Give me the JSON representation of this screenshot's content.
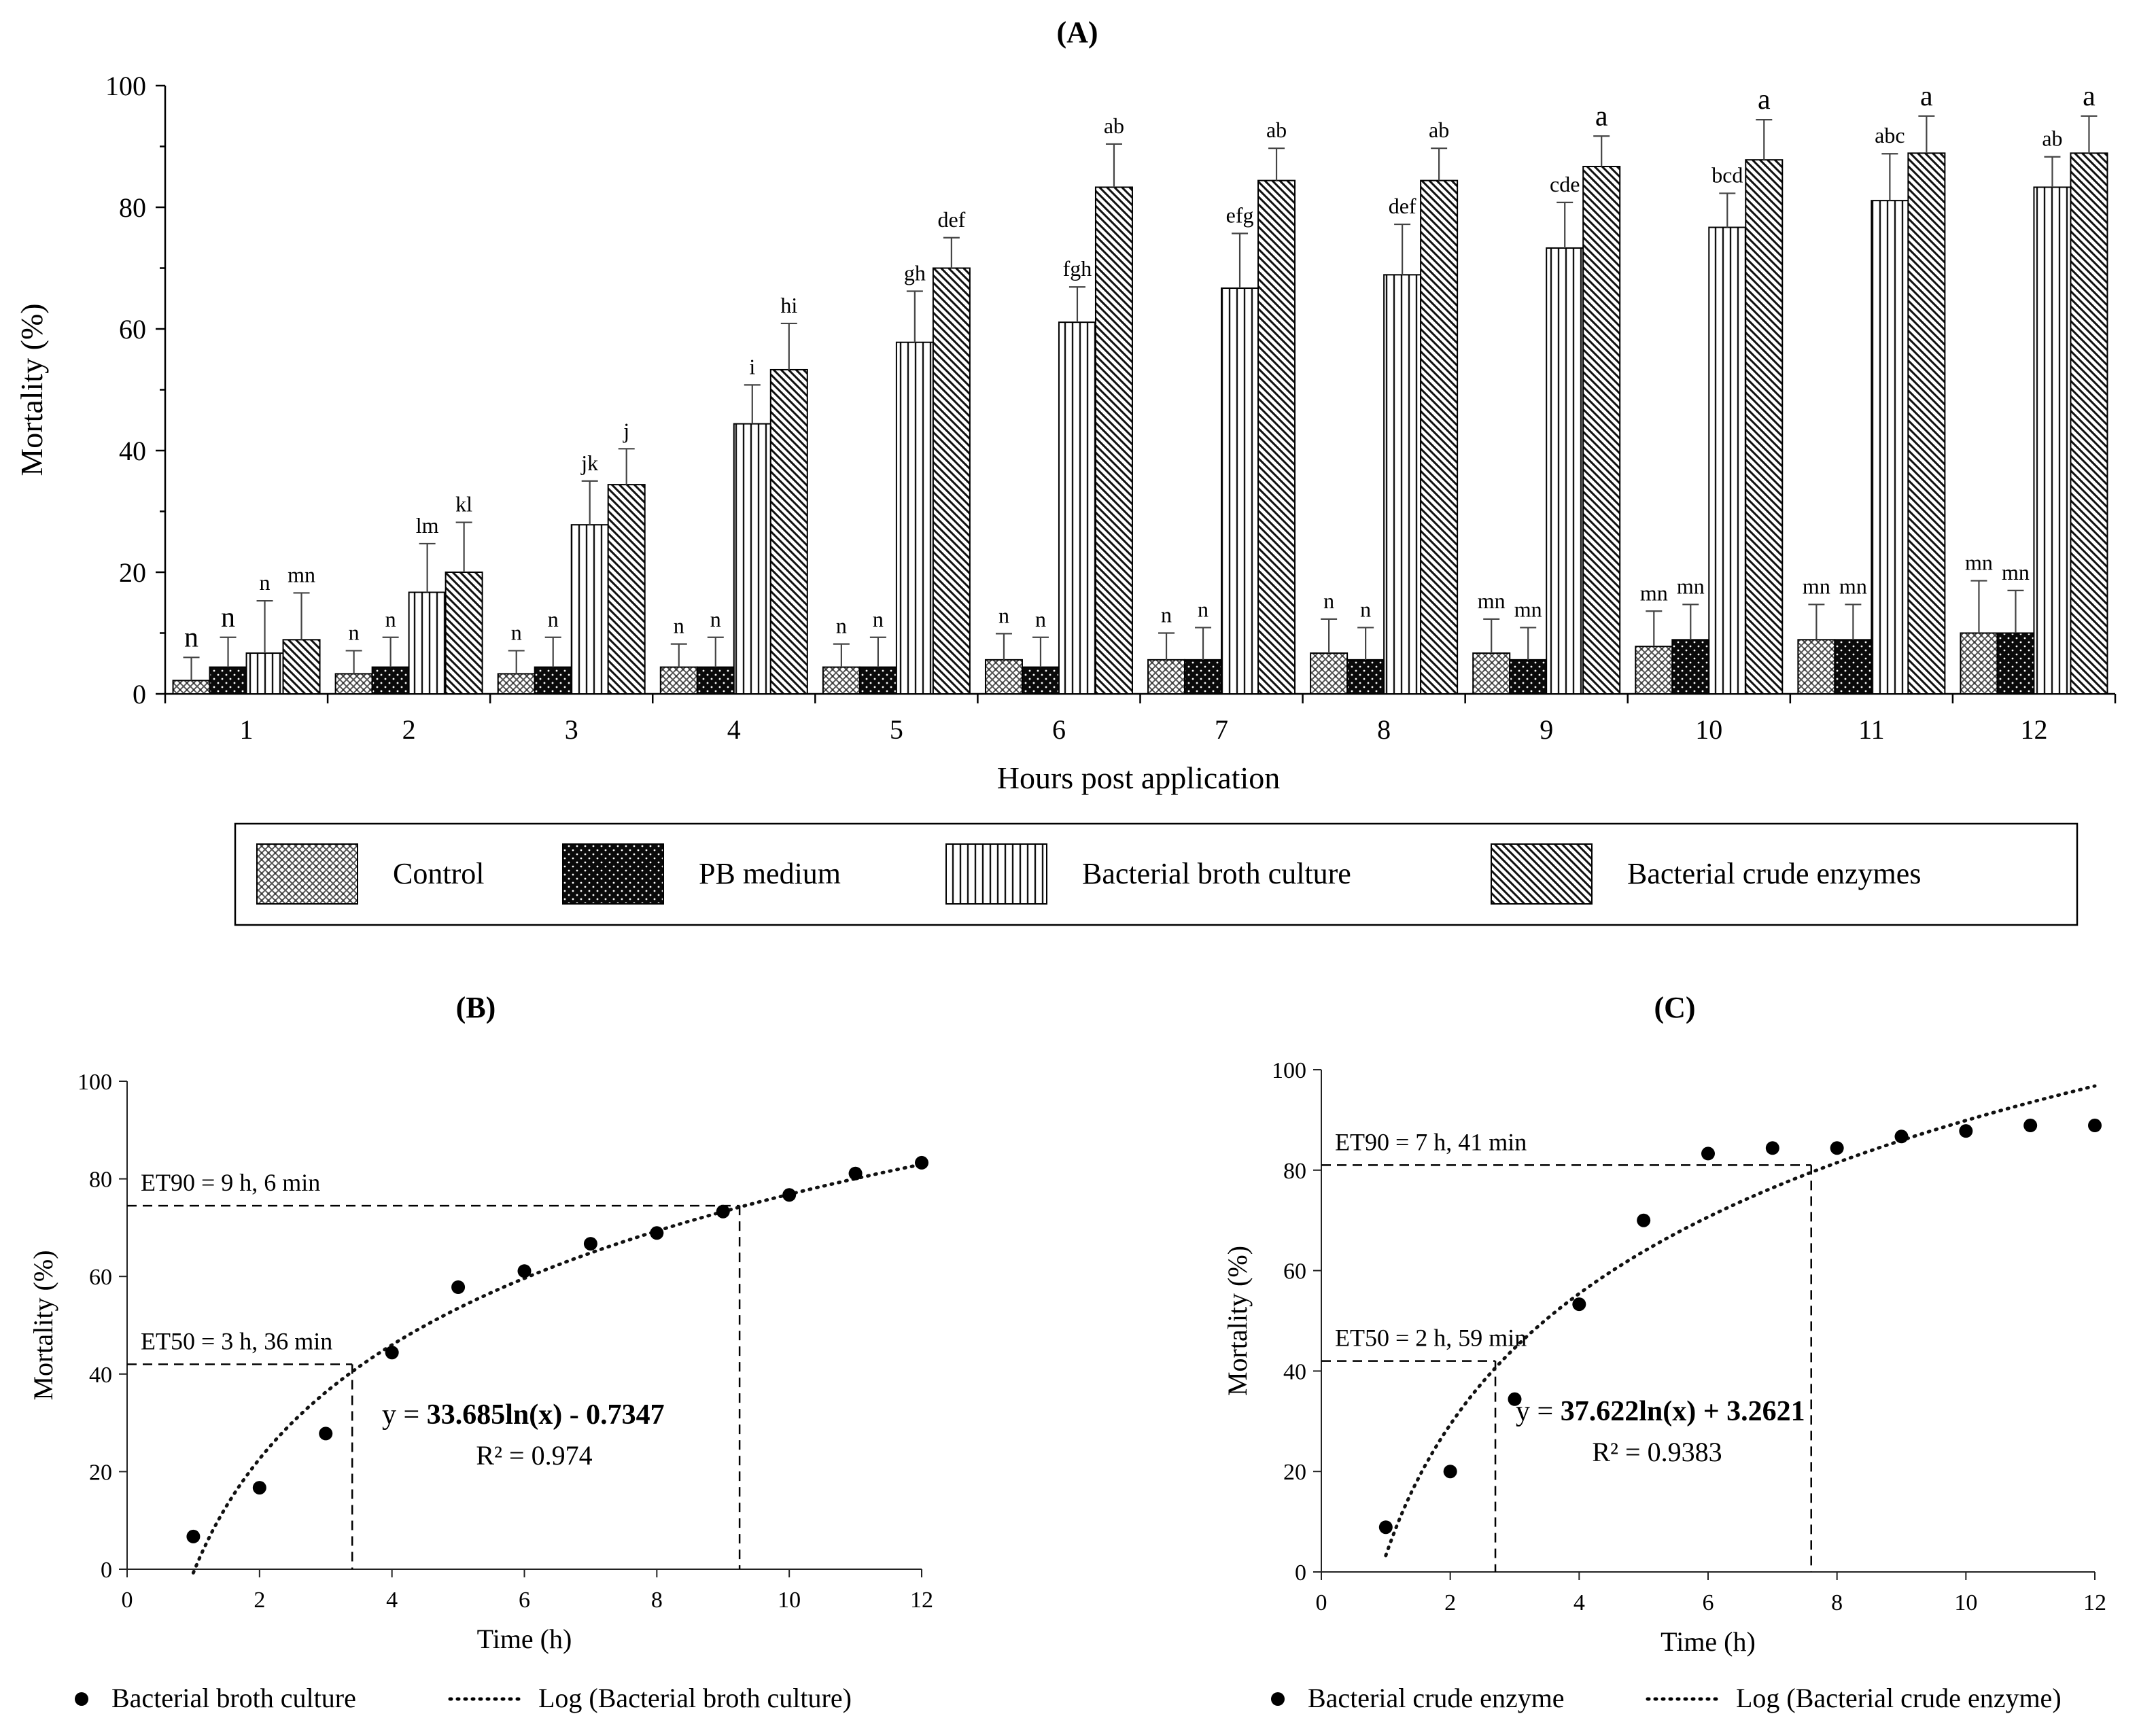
{
  "chart_data": [
    {
      "panel": "A",
      "type": "bar",
      "title": "(A)",
      "xlabel": "Hours post application",
      "ylabel": "Mortality (%)",
      "ylim": [
        0,
        100
      ],
      "yticks": [
        0,
        20,
        40,
        60,
        80,
        100
      ],
      "categories": [
        "1",
        "2",
        "3",
        "4",
        "5",
        "6",
        "7",
        "8",
        "9",
        "10",
        "11",
        "12"
      ],
      "grid": false,
      "legend_position": "bottom",
      "series": [
        {
          "name": "Control",
          "pattern": "crosshatch-light",
          "values": [
            2.2,
            3.3,
            3.3,
            4.4,
            4.4,
            5.6,
            5.6,
            6.7,
            6.7,
            7.8,
            8.9,
            10.0
          ],
          "errors": [
            3.8,
            3.8,
            3.8,
            3.8,
            3.8,
            4.3,
            4.4,
            5.6,
            5.6,
            5.8,
            5.8,
            8.6
          ],
          "letters": [
            "n",
            "n",
            "n",
            "n",
            "n",
            "n",
            "n",
            "n",
            "mn",
            "mn",
            "mn",
            "mn"
          ]
        },
        {
          "name": "PB medium",
          "pattern": "dots-on-black",
          "values": [
            4.4,
            4.4,
            4.4,
            4.4,
            4.4,
            4.4,
            5.6,
            5.6,
            5.6,
            8.9,
            8.9,
            10.0
          ],
          "errors": [
            4.9,
            4.9,
            4.9,
            4.9,
            4.9,
            4.9,
            5.3,
            5.3,
            5.3,
            5.8,
            5.8,
            7.0
          ],
          "letters": [
            "n",
            "n",
            "n",
            "n",
            "n",
            "n",
            "n",
            "n",
            "mn",
            "mn",
            "mn",
            "mn"
          ]
        },
        {
          "name": "Bacterial broth culture",
          "pattern": "vertical-lines",
          "values": [
            6.7,
            16.7,
            27.8,
            44.4,
            57.8,
            61.1,
            66.7,
            68.9,
            73.3,
            76.7,
            81.1,
            83.3
          ],
          "errors": [
            8.6,
            8.0,
            7.2,
            6.4,
            8.4,
            5.8,
            9.0,
            8.3,
            7.5,
            5.6,
            7.7,
            5.0
          ],
          "letters": [
            "n",
            "lm",
            "jk",
            "i",
            "gh",
            "fgh",
            "efg",
            "def",
            "cde",
            "bcd",
            "abc",
            "ab"
          ]
        },
        {
          "name": "Bacterial crude enzymes",
          "pattern": "diagonal-hatch",
          "values": [
            8.9,
            20.0,
            34.4,
            53.3,
            70.0,
            83.3,
            84.4,
            84.4,
            86.7,
            87.8,
            88.9,
            88.9
          ],
          "errors": [
            7.7,
            8.2,
            5.9,
            7.6,
            5.0,
            7.1,
            5.3,
            5.3,
            5.0,
            6.6,
            6.1,
            6.1
          ],
          "letters": [
            "mn",
            "kl",
            "j",
            "hi",
            "def",
            "ab",
            "ab",
            "ab",
            "a",
            "a",
            "a",
            "a"
          ]
        }
      ]
    },
    {
      "panel": "B",
      "type": "scatter",
      "title": "(B)",
      "xlabel": "Time (h)",
      "ylabel": "Mortality (%)",
      "xlim": [
        0,
        12
      ],
      "ylim": [
        0,
        100
      ],
      "xticks": [
        0,
        2,
        4,
        6,
        8,
        10,
        12
      ],
      "yticks": [
        0,
        20,
        40,
        60,
        80,
        100
      ],
      "series_name": "Bacterial broth culture",
      "trend_name": "Log (Bacterial broth culture)",
      "x": [
        1,
        2,
        3,
        4,
        5,
        6,
        7,
        8,
        9,
        10,
        11,
        12
      ],
      "y": [
        6.7,
        16.7,
        27.8,
        44.4,
        57.8,
        61.1,
        66.7,
        68.9,
        73.3,
        76.7,
        81.1,
        83.3
      ],
      "fit": {
        "a": 33.685,
        "b": -0.7347
      },
      "equation_prefix": "y = ",
      "equation_bold": "33.685ln(x) - 0.7347",
      "r2": "R² = 0.974",
      "et50_label": "ET50 = 3 h, 36 min",
      "et50": {
        "x": 3.4,
        "y": 42
      },
      "et90_label": "ET90 = 9 h, 6 min",
      "et90": {
        "x": 9.25,
        "y": 74.5
      }
    },
    {
      "panel": "C",
      "type": "scatter",
      "title": "(C)",
      "xlabel": "Time (h)",
      "ylabel": "Mortality (%)",
      "xlim": [
        0,
        12
      ],
      "ylim": [
        0,
        100
      ],
      "xticks": [
        0,
        2,
        4,
        6,
        8,
        10,
        12
      ],
      "yticks": [
        0,
        20,
        40,
        60,
        80,
        100
      ],
      "series_name": "Bacterial crude enzyme",
      "trend_name": "Log (Bacterial crude enzyme)",
      "x": [
        1,
        2,
        3,
        4,
        5,
        6,
        7,
        8,
        9,
        10,
        11,
        12
      ],
      "y": [
        8.9,
        20.0,
        34.4,
        53.3,
        70.0,
        83.3,
        84.4,
        84.4,
        86.7,
        87.8,
        88.9,
        88.9
      ],
      "fit": {
        "a": 37.622,
        "b": 3.2621
      },
      "equation_prefix": "y = ",
      "equation_bold": "37.622ln(x) + 3.2621",
      "r2": "R² = 0.9383",
      "et50_label": "ET50 = 2 h, 59 min",
      "et50": {
        "x": 2.7,
        "y": 42
      },
      "et90_label": "ET90 = 7 h, 41 min",
      "et90": {
        "x": 7.6,
        "y": 81
      }
    }
  ]
}
